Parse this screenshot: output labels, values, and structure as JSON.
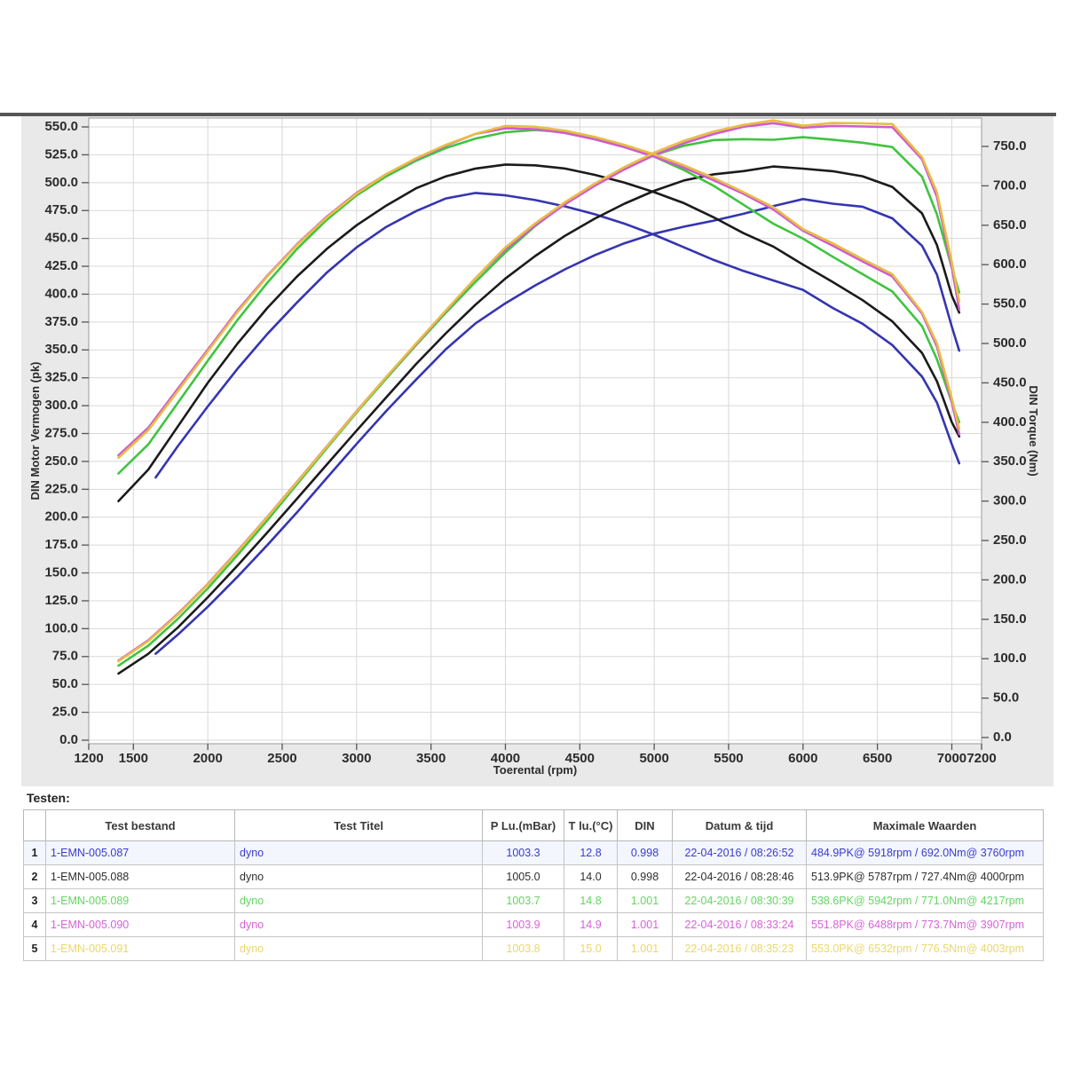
{
  "chart_data": {
    "type": "line",
    "x_axis": {
      "title": "Toerental (rpm)",
      "min": 1200,
      "max": 7200,
      "ticks": [
        1200,
        1500,
        2000,
        2500,
        3000,
        3500,
        4000,
        4500,
        5000,
        5500,
        6000,
        6500,
        7000,
        7200
      ],
      "gridline_ticks": [
        1500,
        2000,
        2500,
        3000,
        3500,
        4000,
        4500,
        5000,
        5500,
        6000,
        6500,
        7000
      ]
    },
    "left_axis": {
      "title": "DIN Motor Vermogen (pk)",
      "min": 0,
      "max": 550,
      "step": 25
    },
    "right_axis": {
      "title": "DIN Torque (Nm)",
      "min": 0,
      "max": 750,
      "step": 50
    },
    "grid": true,
    "note": "Each run is drawn twice: torque (Nm, right axis) and power (pk, left axis). power_pk = torque_nm * rpm / 7023",
    "series": [
      {
        "name": "run1",
        "file": "1-EMN-005.087",
        "color": "#3535b0",
        "peak": "484.9PK@ 5918rpm / 692.0Nm@ 3760rpm",
        "rpm": [
          1650,
          1800,
          2000,
          2200,
          2400,
          2600,
          2800,
          3000,
          3200,
          3400,
          3600,
          3800,
          4000,
          4200,
          4400,
          4600,
          4800,
          5000,
          5200,
          5400,
          5600,
          5800,
          6000,
          6200,
          6400,
          6600,
          6800,
          6900,
          7000,
          7050
        ],
        "torque_nm": [
          330,
          370,
          420,
          468,
          512,
          552,
          590,
          622,
          648,
          668,
          684,
          691,
          688,
          682,
          674,
          664,
          652,
          638,
          622,
          606,
          592,
          580,
          568,
          545,
          525,
          498,
          458,
          425,
          372,
          348
        ]
      },
      {
        "name": "run2",
        "file": "1-EMN-005.088",
        "color": "#1b1b1b",
        "peak": "513.9PK@ 5787rpm / 727.4Nm@ 4000rpm",
        "rpm": [
          1400,
          1600,
          1800,
          2000,
          2200,
          2400,
          2600,
          2800,
          3000,
          3200,
          3400,
          3600,
          3800,
          4000,
          4200,
          4400,
          4600,
          4800,
          5000,
          5200,
          5400,
          5600,
          5800,
          6000,
          6200,
          6400,
          6600,
          6800,
          6900,
          7000,
          7050
        ],
        "torque_nm": [
          300,
          340,
          395,
          450,
          500,
          545,
          585,
          620,
          650,
          675,
          697,
          712,
          722,
          727,
          726,
          722,
          714,
          704,
          692,
          678,
          660,
          640,
          623,
          600,
          578,
          555,
          528,
          488,
          452,
          400,
          382
        ]
      },
      {
        "name": "run3",
        "file": "1-EMN-005.089",
        "color": "#3fc43f",
        "peak": "538.6PK@ 5942rpm / 771.0Nm@ 4217rpm",
        "rpm": [
          1400,
          1600,
          1800,
          2000,
          2200,
          2400,
          2600,
          2800,
          3000,
          3200,
          3400,
          3600,
          3800,
          4000,
          4200,
          4400,
          4600,
          4800,
          5000,
          5200,
          5400,
          5600,
          5800,
          6000,
          6200,
          6400,
          6600,
          6800,
          6900,
          7000,
          7050
        ],
        "torque_nm": [
          335,
          372,
          425,
          478,
          530,
          577,
          620,
          657,
          688,
          712,
          732,
          748,
          760,
          768,
          771,
          768,
          761,
          750,
          737,
          720,
          700,
          676,
          652,
          633,
          610,
          588,
          566,
          522,
          480,
          425,
          400
        ]
      },
      {
        "name": "run4",
        "file": "1-EMN-005.090",
        "color": "#cf5ccf",
        "peak": "551.8PK@ 6488rpm / 773.7Nm@ 3907rpm",
        "rpm": [
          1400,
          1600,
          1800,
          2000,
          2200,
          2400,
          2600,
          2800,
          3000,
          3200,
          3400,
          3600,
          3800,
          4000,
          4200,
          4400,
          4600,
          4800,
          5000,
          5200,
          5400,
          5600,
          5800,
          6000,
          6200,
          6400,
          6600,
          6800,
          6900,
          7000,
          7050
        ],
        "torque_nm": [
          358,
          393,
          443,
          492,
          542,
          586,
          626,
          661,
          691,
          715,
          734,
          751,
          766,
          773,
          772,
          767,
          759,
          749,
          737,
          723,
          707,
          690,
          670,
          643,
          624,
          604,
          585,
          538,
          496,
          425,
          385
        ]
      },
      {
        "name": "run5",
        "file": "1-EMN-005.091",
        "color": "#e7bd45",
        "peak": "553.0PK@ 6532rpm / 776.5Nm@ 4003rpm",
        "rpm": [
          1400,
          1600,
          1800,
          2000,
          2200,
          2400,
          2600,
          2800,
          3000,
          3200,
          3400,
          3600,
          3800,
          4000,
          4200,
          4400,
          4600,
          4800,
          5000,
          5200,
          5400,
          5600,
          5800,
          6000,
          6200,
          6400,
          6600,
          6800,
          6900,
          7000,
          7050
        ],
        "torque_nm": [
          355,
          390,
          440,
          490,
          540,
          585,
          625,
          660,
          690,
          715,
          735,
          752,
          766,
          776,
          775,
          770,
          762,
          752,
          740,
          726,
          710,
          692,
          673,
          645,
          627,
          607,
          588,
          540,
          500,
          430,
          392
        ]
      }
    ]
  },
  "table": {
    "title": "Testen:",
    "headers": [
      "",
      "Test bestand",
      "Test Titel",
      "P Lu.(mBar)",
      "T lu.(°C)",
      "DIN",
      "Datum & tijd",
      "Maximale Waarden"
    ],
    "rows": [
      {
        "num": "1",
        "file": "1-EMN-005.087",
        "titel": "dyno",
        "p_lu": "1003.3",
        "t_lu": "12.8",
        "din": "0.998",
        "datum": "22-04-2016 / 08:26:52",
        "max": "484.9PK@ 5918rpm / 692.0Nm@ 3760rpm",
        "color": "#3b3bd0",
        "highlight": true
      },
      {
        "num": "2",
        "file": "1-EMN-005.088",
        "titel": "dyno",
        "p_lu": "1005.0",
        "t_lu": "14.0",
        "din": "0.998",
        "datum": "22-04-2016 / 08:28:46",
        "max": "513.9PK@ 5787rpm / 727.4Nm@ 4000rpm",
        "color": "#2e2e2e",
        "highlight": false
      },
      {
        "num": "3",
        "file": "1-EMN-005.089",
        "titel": "dyno",
        "p_lu": "1003.7",
        "t_lu": "14.8",
        "din": "1.001",
        "datum": "22-04-2016 / 08:30:39",
        "max": "538.6PK@ 5942rpm / 771.0Nm@ 4217rpm",
        "color": "#63d663",
        "highlight": false
      },
      {
        "num": "4",
        "file": "1-EMN-005.090",
        "titel": "dyno",
        "p_lu": "1003.9",
        "t_lu": "14.9",
        "din": "1.001",
        "datum": "22-04-2016 / 08:33:24",
        "max": "551.8PK@ 6488rpm / 773.7Nm@ 3907rpm",
        "color": "#d862d8",
        "highlight": false
      },
      {
        "num": "5",
        "file": "1-EMN-005.091",
        "titel": "dyno",
        "p_lu": "1003.8",
        "t_lu": "15.0",
        "din": "1.001",
        "datum": "22-04-2016 / 08:35:23",
        "max": "553.0PK@ 6532rpm / 776.5Nm@ 4003rpm",
        "color": "#ead76a",
        "highlight": false
      }
    ]
  }
}
